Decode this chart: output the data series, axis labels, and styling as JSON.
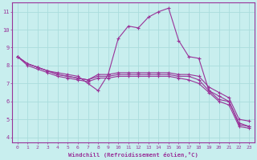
{
  "title": "",
  "xlabel": "Windchill (Refroidissement éolien,°C)",
  "ylabel": "",
  "xlim": [
    -0.5,
    23.5
  ],
  "ylim": [
    3.7,
    11.5
  ],
  "yticks": [
    4,
    5,
    6,
    7,
    8,
    9,
    10,
    11
  ],
  "xticks": [
    0,
    1,
    2,
    3,
    4,
    5,
    6,
    7,
    8,
    9,
    10,
    11,
    12,
    13,
    14,
    15,
    16,
    17,
    18,
    19,
    20,
    21,
    22,
    23
  ],
  "bg_color": "#c8eeee",
  "line_color": "#993399",
  "grid_color": "#aadddd",
  "curves": [
    {
      "x": [
        0,
        1,
        2,
        3,
        4,
        5,
        6,
        7,
        8,
        9,
        10,
        11,
        12,
        13,
        14,
        15,
        16,
        17,
        18,
        19,
        20,
        21,
        22,
        23
      ],
      "y": [
        8.5,
        8.1,
        7.9,
        7.7,
        7.6,
        7.5,
        7.4,
        7.0,
        6.6,
        7.5,
        9.5,
        10.2,
        10.1,
        10.7,
        11.0,
        11.2,
        9.4,
        8.5,
        8.4,
        6.6,
        6.1,
        6.0,
        4.7,
        4.6
      ]
    },
    {
      "x": [
        0,
        1,
        2,
        3,
        4,
        5,
        6,
        7,
        8,
        9,
        10,
        11,
        12,
        13,
        14,
        15,
        16,
        17,
        18,
        19,
        20,
        21,
        22,
        23
      ],
      "y": [
        8.5,
        8.1,
        7.9,
        7.7,
        7.5,
        7.4,
        7.3,
        7.2,
        7.5,
        7.5,
        7.6,
        7.6,
        7.6,
        7.6,
        7.6,
        7.6,
        7.5,
        7.5,
        7.4,
        6.8,
        6.5,
        6.2,
        5.0,
        4.9
      ]
    },
    {
      "x": [
        0,
        1,
        2,
        3,
        4,
        5,
        6,
        7,
        8,
        9,
        10,
        11,
        12,
        13,
        14,
        15,
        16,
        17,
        18,
        19,
        20,
        21,
        22,
        23
      ],
      "y": [
        8.5,
        8.1,
        7.9,
        7.7,
        7.5,
        7.4,
        7.3,
        7.2,
        7.4,
        7.4,
        7.5,
        7.5,
        7.5,
        7.5,
        7.5,
        7.5,
        7.4,
        7.4,
        7.2,
        6.6,
        6.3,
        6.0,
        4.8,
        4.6
      ]
    },
    {
      "x": [
        0,
        1,
        2,
        3,
        4,
        5,
        6,
        7,
        8,
        9,
        10,
        11,
        12,
        13,
        14,
        15,
        16,
        17,
        18,
        19,
        20,
        21,
        22,
        23
      ],
      "y": [
        8.5,
        8.0,
        7.8,
        7.6,
        7.4,
        7.3,
        7.2,
        7.1,
        7.3,
        7.3,
        7.4,
        7.4,
        7.4,
        7.4,
        7.4,
        7.4,
        7.3,
        7.2,
        7.0,
        6.5,
        6.0,
        5.8,
        4.6,
        4.5
      ]
    }
  ]
}
